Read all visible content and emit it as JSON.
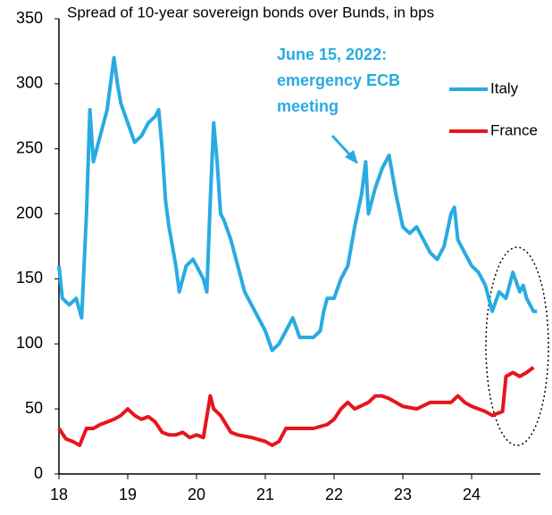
{
  "chart_data": {
    "type": "line",
    "title": "Spread of 10-year sovereign bonds over Bunds, in bps",
    "annotation": [
      "June 15, 2022:",
      "emergency ECB",
      "meeting"
    ],
    "xlim": [
      18,
      25
    ],
    "xticks": [
      18,
      19,
      20,
      21,
      22,
      23,
      24
    ],
    "ylim": [
      0,
      350
    ],
    "yticks": [
      0,
      50,
      100,
      150,
      200,
      250,
      300,
      350
    ],
    "grid": false,
    "legend": "top-right",
    "series": [
      {
        "name": "Italy",
        "color": "#29abe2",
        "x": [
          18.0,
          18.05,
          18.15,
          18.25,
          18.33,
          18.4,
          18.45,
          18.5,
          18.6,
          18.7,
          18.75,
          18.8,
          18.85,
          18.9,
          19.0,
          19.1,
          19.2,
          19.3,
          19.4,
          19.45,
          19.5,
          19.55,
          19.6,
          19.7,
          19.75,
          19.85,
          19.95,
          20.1,
          20.15,
          20.2,
          20.25,
          20.3,
          20.35,
          20.4,
          20.5,
          20.6,
          20.7,
          20.8,
          20.9,
          21.0,
          21.1,
          21.2,
          21.3,
          21.4,
          21.5,
          21.6,
          21.7,
          21.8,
          21.85,
          21.9,
          22.0,
          22.1,
          22.2,
          22.3,
          22.4,
          22.46,
          22.5,
          22.6,
          22.7,
          22.8,
          22.9,
          23.0,
          23.1,
          23.2,
          23.3,
          23.4,
          23.5,
          23.6,
          23.7,
          23.75,
          23.8,
          23.9,
          24.0,
          24.1,
          24.2,
          24.3,
          24.4,
          24.5,
          24.55,
          24.6,
          24.7,
          24.75,
          24.8,
          24.9,
          24.95
        ],
        "values": [
          160,
          135,
          130,
          135,
          120,
          200,
          280,
          240,
          260,
          280,
          300,
          320,
          300,
          285,
          270,
          255,
          260,
          270,
          275,
          280,
          250,
          210,
          190,
          160,
          140,
          160,
          165,
          150,
          140,
          210,
          270,
          240,
          200,
          195,
          180,
          160,
          140,
          130,
          120,
          110,
          95,
          100,
          110,
          120,
          105,
          105,
          105,
          110,
          125,
          135,
          135,
          150,
          160,
          190,
          215,
          240,
          200,
          220,
          235,
          245,
          215,
          190,
          185,
          190,
          180,
          170,
          165,
          175,
          200,
          205,
          180,
          170,
          160,
          155,
          145,
          125,
          140,
          135,
          145,
          155,
          140,
          145,
          135,
          125,
          125
        ]
      },
      {
        "name": "France",
        "color": "#e8141c",
        "x": [
          18.0,
          18.1,
          18.2,
          18.3,
          18.4,
          18.5,
          18.6,
          18.7,
          18.8,
          18.9,
          19.0,
          19.1,
          19.2,
          19.3,
          19.4,
          19.5,
          19.6,
          19.7,
          19.8,
          19.9,
          20.0,
          20.1,
          20.2,
          20.25,
          20.35,
          20.5,
          20.6,
          20.8,
          21.0,
          21.1,
          21.2,
          21.3,
          21.5,
          21.7,
          21.9,
          22.0,
          22.1,
          22.2,
          22.3,
          22.5,
          22.6,
          22.7,
          22.8,
          22.9,
          23.0,
          23.2,
          23.4,
          23.6,
          23.7,
          23.8,
          23.9,
          24.0,
          24.2,
          24.3,
          24.45,
          24.5,
          24.6,
          24.7,
          24.8,
          24.9
        ],
        "values": [
          35,
          27,
          25,
          22,
          35,
          35,
          38,
          40,
          42,
          45,
          50,
          45,
          42,
          44,
          40,
          32,
          30,
          30,
          32,
          28,
          30,
          28,
          60,
          50,
          45,
          32,
          30,
          28,
          25,
          22,
          25,
          35,
          35,
          35,
          38,
          42,
          50,
          55,
          50,
          55,
          60,
          60,
          58,
          55,
          52,
          50,
          55,
          55,
          55,
          60,
          55,
          52,
          48,
          45,
          48,
          75,
          78,
          75,
          78,
          82
        ]
      }
    ]
  }
}
